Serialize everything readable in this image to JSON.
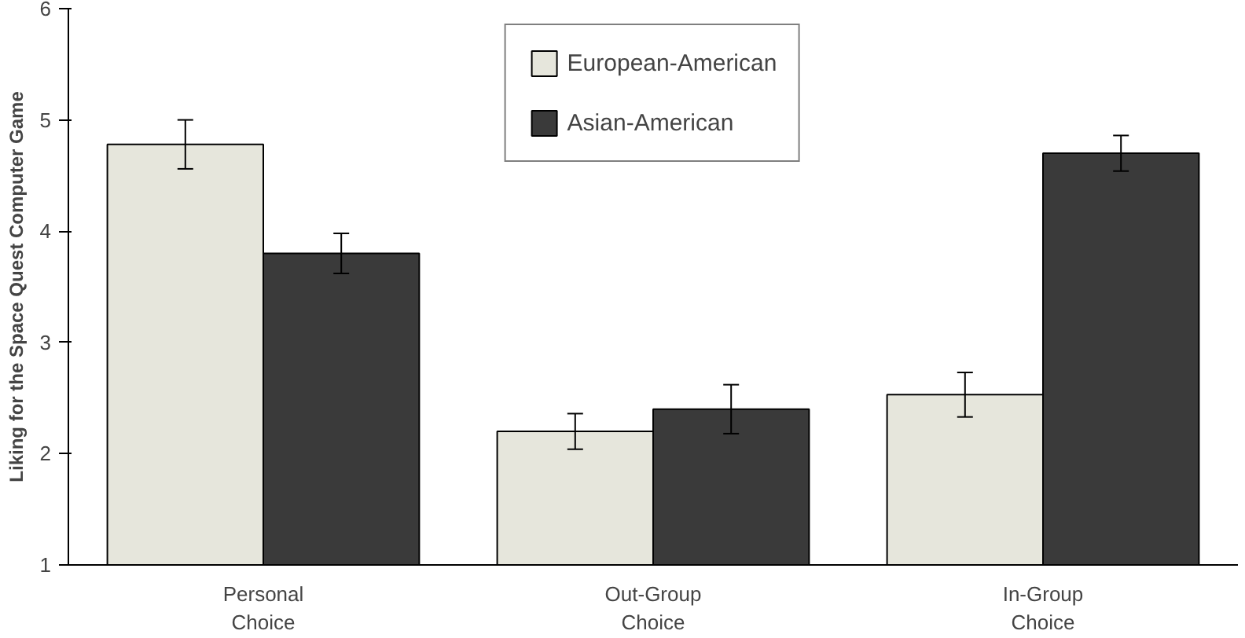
{
  "chart_data": {
    "type": "bar",
    "ylabel": "Liking for the Space Quest Computer Game",
    "categories": [
      "Personal\nChoice",
      "Out-Group\nChoice",
      "In-Group\nChoice"
    ],
    "series": [
      {
        "name": "European-American",
        "color": "#e6e6dc",
        "values": [
          4.78,
          2.2,
          2.53
        ],
        "errors": [
          0.22,
          0.16,
          0.2
        ]
      },
      {
        "name": "Asian-American",
        "color": "#3a3a3a",
        "values": [
          3.8,
          2.4,
          4.7
        ],
        "errors": [
          0.18,
          0.22,
          0.16
        ]
      }
    ],
    "ylim": [
      1,
      6
    ],
    "yticks": [
      1,
      2,
      3,
      4,
      5,
      6
    ],
    "grid": false,
    "legend": "top"
  }
}
